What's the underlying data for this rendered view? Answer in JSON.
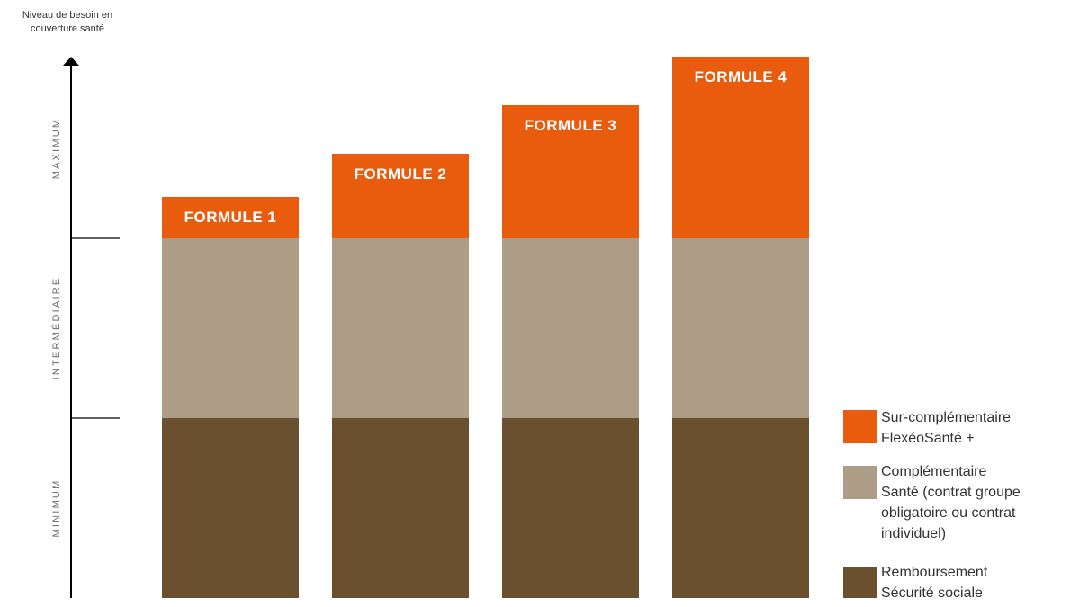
{
  "chart_data": {
    "type": "bar",
    "stacked": true,
    "y_title_lines": [
      "Niveau de besoin en",
      "couverture santé"
    ],
    "categories": [
      "FORMULE 1",
      "FORMULE 2",
      "FORMULE 3",
      "FORMULE 4"
    ],
    "levels": [
      "MINIMUM",
      "INTERMÉDIAIRE",
      "MAXIMUM"
    ],
    "ylim": [
      0,
      3
    ],
    "series": [
      {
        "name": "Remboursement Sécurité sociale",
        "values": [
          1,
          1,
          1,
          1
        ],
        "color": "#6b5030"
      },
      {
        "name": "Complémentaire Santé (contrat groupe obligatoire ou contrat individuel)",
        "values": [
          1,
          1,
          1,
          1
        ],
        "color": "#ad9d87"
      },
      {
        "name": "Sur-complémentaire FlexéoSanté +",
        "values": [
          0.23,
          0.47,
          0.74,
          1.01
        ],
        "color": "#e95c0e"
      }
    ],
    "legend_position": "bottom-right",
    "grid": false
  },
  "legend": {
    "items": [
      {
        "lines": [
          "Sur-complémentaire",
          "FlexéoSanté +"
        ],
        "color": "#e95c0e"
      },
      {
        "lines": [
          "Complémentaire",
          "Santé (contrat groupe",
          "obligatoire ou contrat",
          "individuel)"
        ],
        "color": "#ad9d87"
      },
      {
        "lines": [
          "Remboursement",
          "Sécurité sociale"
        ],
        "color": "#6b5030"
      }
    ]
  },
  "colors": {
    "axis": "#000000",
    "bar_text": "#ffffff",
    "level_text": "#6b6b6b"
  }
}
